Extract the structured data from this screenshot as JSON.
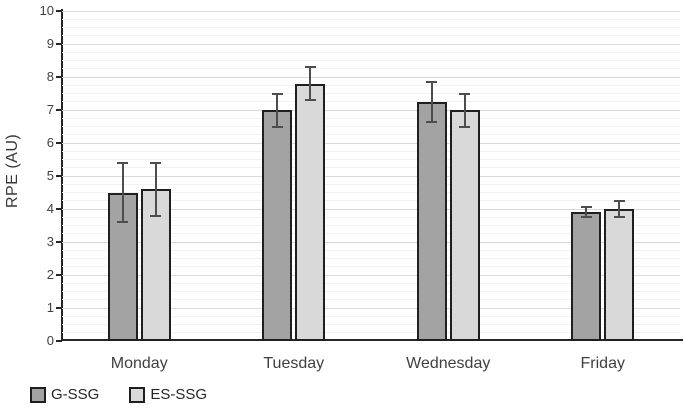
{
  "chart_data": {
    "type": "bar",
    "title": "",
    "xlabel": "",
    "ylabel": "RPE (AU)",
    "categories": [
      "Monday",
      "Tuesday",
      "Wednesday",
      "Friday"
    ],
    "series": [
      {
        "name": "G-SSG",
        "color": "#a3a3a3",
        "values": [
          4.5,
          7.0,
          7.25,
          3.9
        ],
        "errors": [
          0.9,
          0.5,
          0.6,
          0.15
        ]
      },
      {
        "name": "ES-SSG",
        "color": "#d9d9d9",
        "values": [
          4.6,
          7.8,
          7.0,
          4.0
        ],
        "errors": [
          0.8,
          0.5,
          0.5,
          0.25
        ]
      }
    ],
    "ylim": [
      0,
      10
    ],
    "y_tick_labels": [
      "0",
      "1",
      "2",
      "3",
      "4",
      "5",
      "6",
      "7",
      "8",
      "9",
      "10"
    ],
    "y_major_step": 1,
    "y_minor_step": 0.25,
    "grid": "major+minor horizontal",
    "legend_position": "bottom-left",
    "error_bars": true
  },
  "colors": {
    "background": "#ffffff",
    "bar_border": "#1f1f1f",
    "error_bar": "#4d4d4d",
    "axis": "#262626",
    "gridline_major": "#d9d9d9",
    "gridline_minor": "#f2f2f2",
    "tick_text": "#404040",
    "category_text": "#404040",
    "legend_text": "#262626"
  }
}
